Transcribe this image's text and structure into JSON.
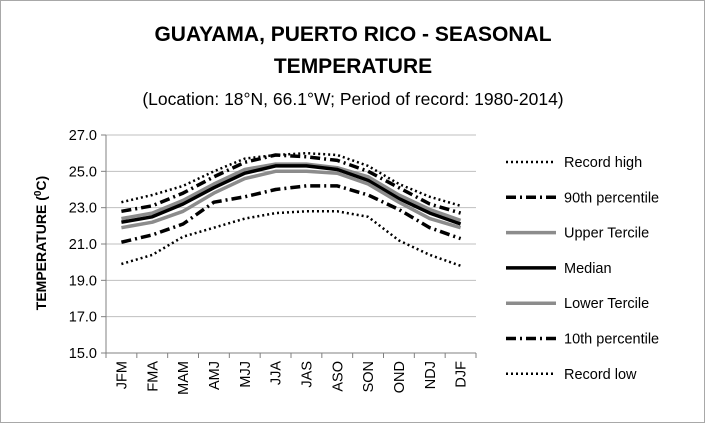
{
  "chart_data": {
    "type": "line",
    "title_line1": "GUAYAMA, PUERTO RICO - SEASONAL",
    "title_line2": "TEMPERATURE",
    "subtitle": "(Location: 18°N, 66.1°W; Period of record: 1980-2014)",
    "ylabel": "TEMPERATURE (",
    "ylabel_sup": "0",
    "ylabel_end": "C)",
    "xlabel": "",
    "ylim": [
      15.0,
      27.0
    ],
    "yticks": [
      "15.0",
      "17.0",
      "19.0",
      "21.0",
      "23.0",
      "25.0",
      "27.0"
    ],
    "categories": [
      "JFM",
      "FMA",
      "MAM",
      "AMJ",
      "MJJ",
      "JJA",
      "JAS",
      "ASO",
      "SON",
      "OND",
      "NDJ",
      "DJF"
    ],
    "legend_position": "right",
    "grid": "horizontal",
    "series": [
      {
        "name": "Record high",
        "color": "#000000",
        "style": "dotted",
        "width": 2.5,
        "values": [
          23.3,
          23.7,
          24.2,
          25.0,
          25.7,
          25.9,
          26.0,
          25.9,
          25.3,
          24.3,
          23.6,
          23.1
        ]
      },
      {
        "name": "90th percentile",
        "color": "#000000",
        "style": "dashdot",
        "width": 3.5,
        "values": [
          22.8,
          23.1,
          23.8,
          24.7,
          25.5,
          25.9,
          25.8,
          25.6,
          25.0,
          24.1,
          23.2,
          22.7
        ]
      },
      {
        "name": "Upper Tercile",
        "color": "#8c8c8c",
        "style": "solid",
        "width": 3.5,
        "values": [
          22.4,
          22.7,
          23.4,
          24.3,
          25.1,
          25.4,
          25.4,
          25.2,
          24.7,
          23.7,
          22.9,
          22.3
        ]
      },
      {
        "name": "Median",
        "color": "#000000",
        "style": "solid",
        "width": 3.5,
        "values": [
          22.2,
          22.5,
          23.2,
          24.1,
          24.9,
          25.3,
          25.3,
          25.1,
          24.5,
          23.5,
          22.7,
          22.1
        ]
      },
      {
        "name": "Lower Tercile",
        "color": "#8c8c8c",
        "style": "solid",
        "width": 3.5,
        "values": [
          21.9,
          22.2,
          22.8,
          23.8,
          24.6,
          25.0,
          25.0,
          24.9,
          24.3,
          23.3,
          22.4,
          21.9
        ]
      },
      {
        "name": "10th percentile",
        "color": "#000000",
        "style": "dashdot",
        "width": 3.5,
        "values": [
          21.1,
          21.5,
          22.1,
          23.3,
          23.6,
          24.0,
          24.2,
          24.2,
          23.7,
          22.9,
          21.9,
          21.3
        ]
      },
      {
        "name": "Record low",
        "color": "#000000",
        "style": "dotted",
        "width": 2.5,
        "values": [
          19.9,
          20.4,
          21.4,
          21.9,
          22.4,
          22.7,
          22.8,
          22.8,
          22.5,
          21.2,
          20.4,
          19.8
        ]
      }
    ]
  }
}
